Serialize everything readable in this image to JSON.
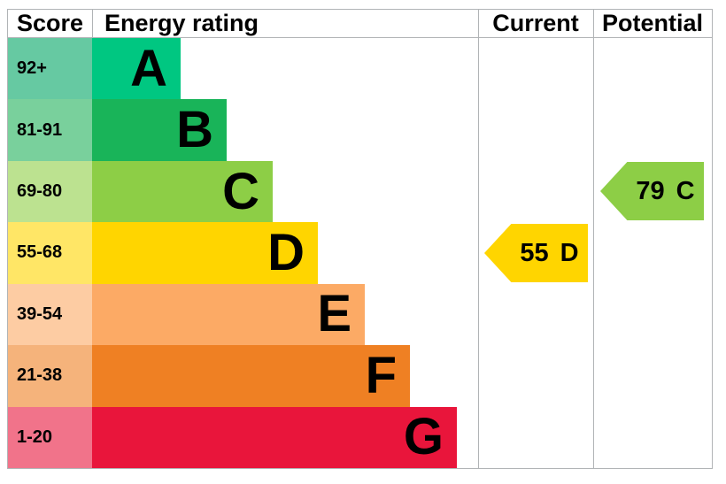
{
  "chart_data": {
    "type": "bar",
    "title": "Energy rating",
    "columns": {
      "score": "Score",
      "rating": "Energy rating",
      "current": "Current",
      "potential": "Potential"
    },
    "bands": [
      {
        "letter": "A",
        "score": "92+",
        "color": "#00c781",
        "score_bg": "#66c9a2"
      },
      {
        "letter": "B",
        "score": "81-91",
        "color": "#19b459",
        "score_bg": "#79d09c"
      },
      {
        "letter": "C",
        "score": "69-80",
        "color": "#8dce46",
        "score_bg": "#bce290"
      },
      {
        "letter": "D",
        "score": "55-68",
        "color": "#ffd500",
        "score_bg": "#ffe666"
      },
      {
        "letter": "E",
        "score": "39-54",
        "color": "#fcaa65",
        "score_bg": "#fdcca3"
      },
      {
        "letter": "F",
        "score": "21-38",
        "color": "#ef8023",
        "score_bg": "#f5b37b"
      },
      {
        "letter": "G",
        "score": "1-20",
        "color": "#e9153b",
        "score_bg": "#f1738a"
      }
    ],
    "current": {
      "value": "55",
      "band": "D",
      "color": "#ffd500"
    },
    "potential": {
      "value": "79",
      "band": "C",
      "color": "#8dce46"
    },
    "border_color": "#b1b4b6"
  }
}
